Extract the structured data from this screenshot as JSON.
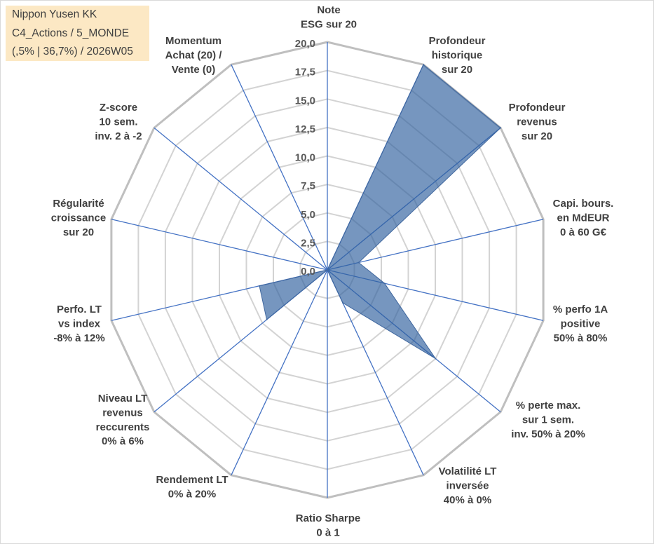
{
  "title_box": {
    "name": "Nippon Yusen KK",
    "category": "C4_Actions / 5_MONDE",
    "info": "(,5% | 36,7%) / 2026W05"
  },
  "colors": {
    "title_box_bg": "#FCE8C4",
    "spoke": "#4472C4",
    "grid": "#D3D3D3",
    "grid_outer": "#BFBFBF",
    "series_fill": "#2F5F9E",
    "series_stroke": "#41689F"
  },
  "chart_data": {
    "type": "radar",
    "categories": [
      [
        "Note",
        "ESG sur 20"
      ],
      [
        "Profondeur",
        "historique",
        "sur 20"
      ],
      [
        "Profondeur",
        "revenus",
        "sur 20"
      ],
      [
        "Capi. bours.",
        "en MdEUR",
        "0 à 60 G€"
      ],
      [
        "% perfo 1A",
        "positive",
        "50% à 80%"
      ],
      [
        "% perte max.",
        "sur 1 sem.",
        "inv. 50% à 20%"
      ],
      [
        "Volatilité LT",
        "inversée",
        "40% à 0%"
      ],
      [
        "Ratio Sharpe",
        "0 à 1"
      ],
      [
        "Rendement LT",
        "0% à 20%"
      ],
      [
        "Niveau LT",
        "revenus",
        "reccurents",
        "0% à 6%"
      ],
      [
        "Perfo. LT",
        "vs index",
        "-8% à 12%"
      ],
      [
        "Régularité",
        "croissance",
        "sur 20"
      ],
      [
        "Z-score",
        "10 sem.",
        "inv. 2 à -2"
      ],
      [
        "Momentum",
        "Achat (20) /",
        "Vente (0)"
      ]
    ],
    "values": [
      0,
      20,
      20,
      2.9,
      5.3,
      12.5,
      3.2,
      0,
      0,
      7.0,
      6.3,
      0,
      0,
      0
    ],
    "rlim": [
      0,
      20
    ],
    "rstep": 2.5,
    "tick_labels": [
      "0,0",
      "2,5",
      "5,0",
      "7,5",
      "10,0",
      "12,5",
      "15,0",
      "17,5",
      "20,0"
    ],
    "grid": true
  }
}
